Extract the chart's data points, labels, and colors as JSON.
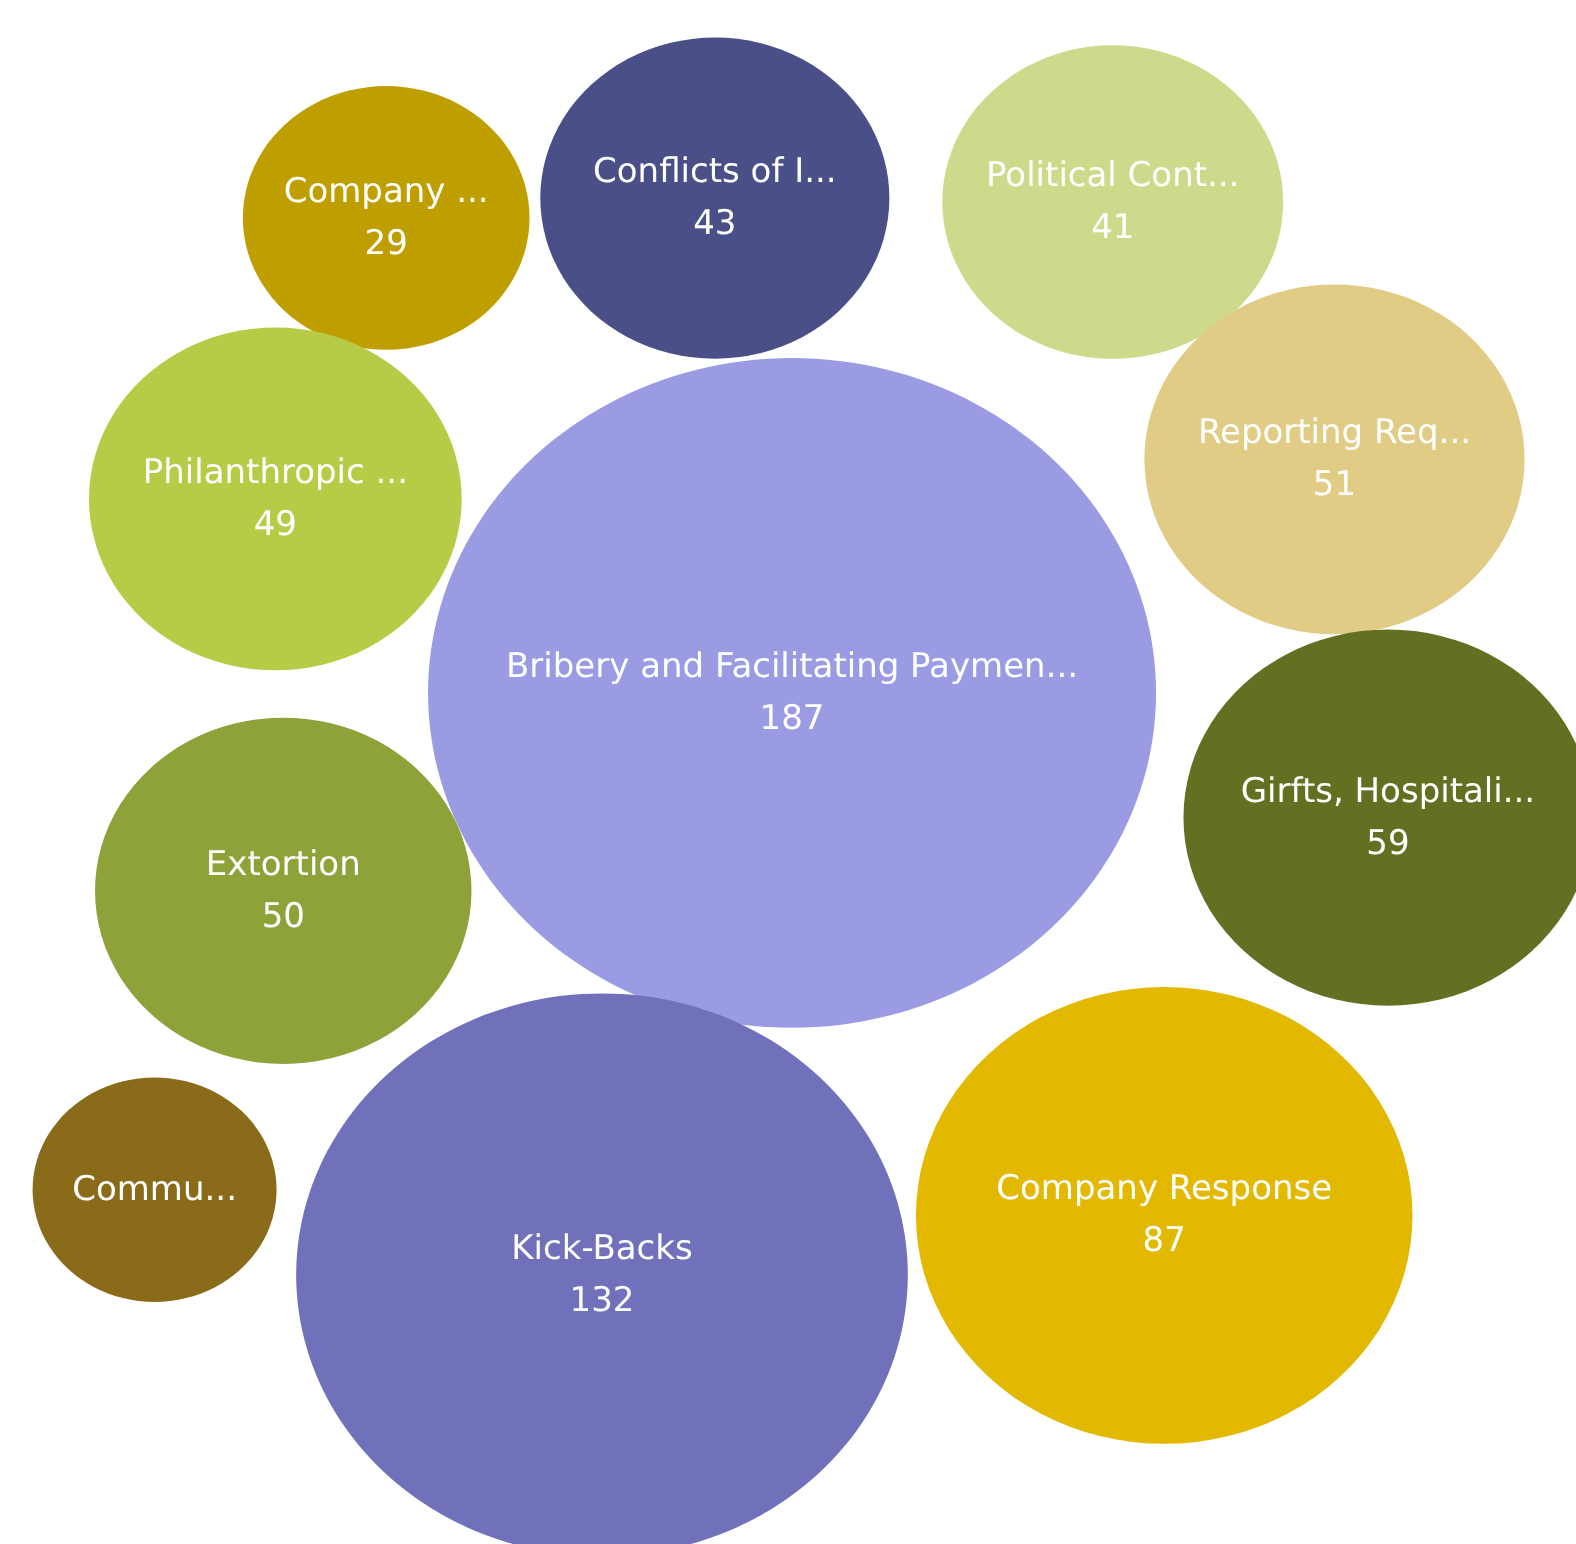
{
  "chart_data": {
    "type": "other",
    "categories": [
      "Company ...",
      "Conflicts of I...",
      "Political Cont...",
      "Philanthropic ...",
      "Reporting Req...",
      "Bribery and Facilitating Paymen...",
      "Girfts, Hospitali...",
      "Extortion",
      "Commu...",
      "Kick-Backs",
      "Company Response"
    ],
    "values": [
      29,
      43,
      41,
      49,
      51,
      187,
      59,
      50,
      null,
      132,
      87
    ],
    "data_labels": true,
    "colors": [
      "#bf9f00",
      "#4a5087",
      "#cfd98b",
      "#b7cb46",
      "#e0cc85",
      "#9a9be3",
      "#637022",
      "#8ea23a",
      "#8a6b1a",
      "#7170bb",
      "#e2b900"
    ]
  }
}
